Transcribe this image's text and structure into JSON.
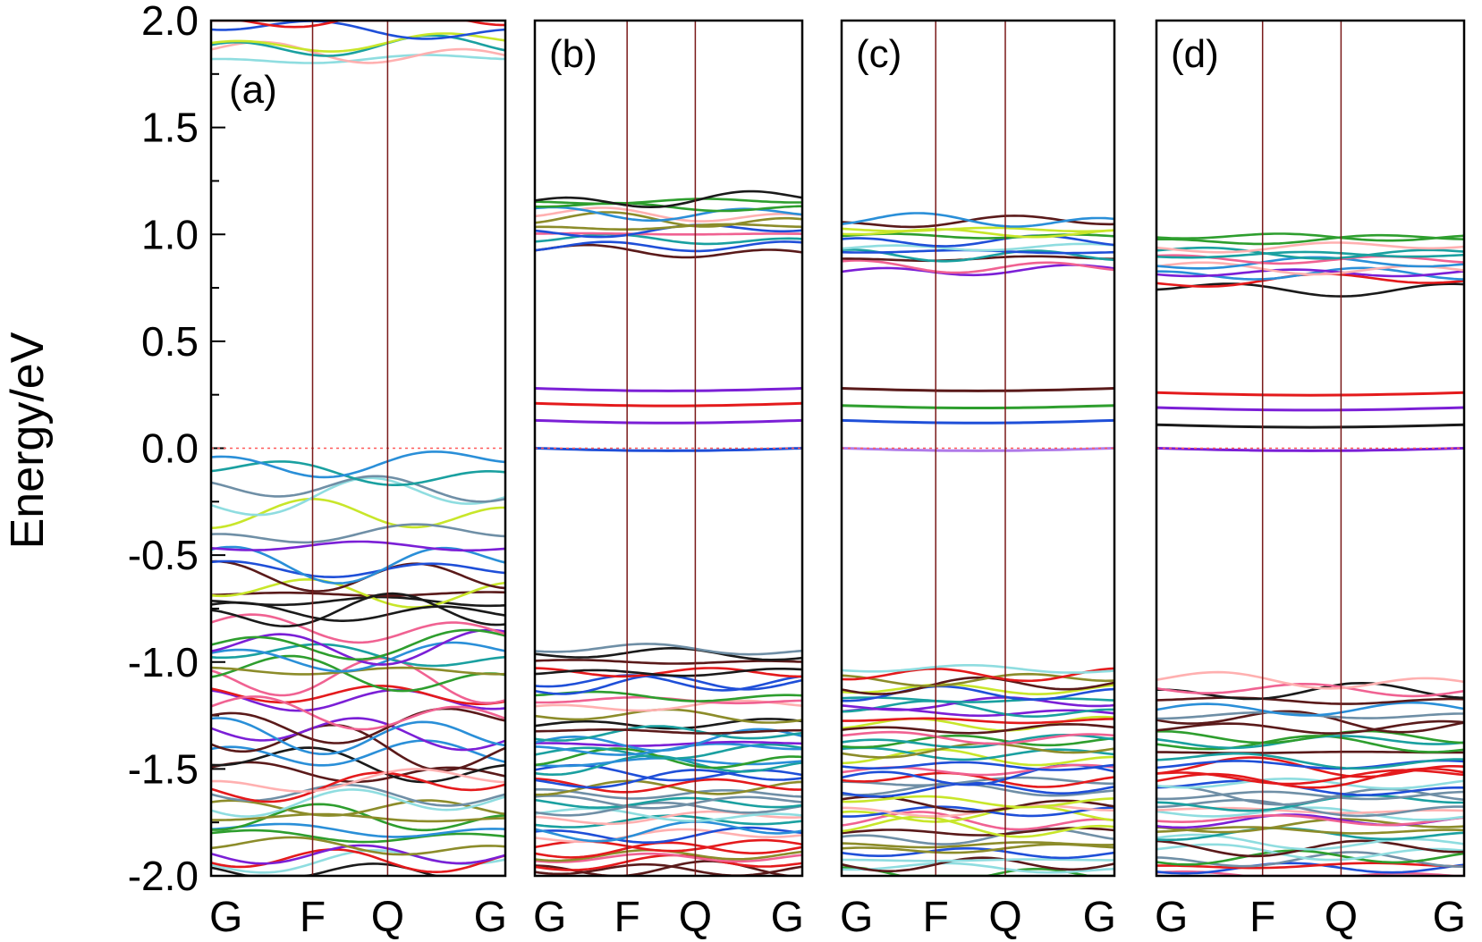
{
  "ylabel": "Energy/eV",
  "y_ticks": [
    "2.0",
    "1.5",
    "1.0",
    "0.5",
    "0.0",
    "-0.5",
    "-1.0",
    "-1.5",
    "-2.0"
  ],
  "colors": {
    "palette": [
      "#e41a1c",
      "#1a1a1a",
      "#1f4fd8",
      "#2e9e2e",
      "#7b1fd6",
      "#1aa0a0",
      "#5a1a1a",
      "#8c8c2a",
      "#f06292",
      "#8fdde0",
      "#2a8fd8",
      "#c8e62a",
      "#6f8fa6",
      "#ffb0b0"
    ],
    "fermi_line": "#ff5a5a",
    "kpath_line": "#7a1a1a"
  },
  "chart_data": [
    {
      "type": "line",
      "label": "(a)",
      "kpoints": [
        "G",
        "F",
        "Q",
        "G"
      ],
      "ylim": [
        -2.0,
        2.0
      ],
      "fermi_level": 0.0,
      "band_groups": [
        {
          "range": [
            1.8,
            2.0
          ],
          "count": 6,
          "amplitude": 0.06
        },
        {
          "range": [
            -0.38,
            0.0
          ],
          "count": 5,
          "amplitude": 0.12
        },
        {
          "range": [
            -0.75,
            -0.4
          ],
          "count": 8,
          "amplitude": 0.12
        },
        {
          "range": [
            -1.2,
            -0.75
          ],
          "count": 12,
          "amplitude": 0.12
        },
        {
          "range": [
            -1.55,
            -1.2
          ],
          "count": 8,
          "amplitude": 0.12
        },
        {
          "range": [
            -2.0,
            -1.55
          ],
          "count": 14,
          "amplitude": 0.08
        }
      ],
      "flat_bands": []
    },
    {
      "type": "line",
      "label": "(b)",
      "kpoints": [
        "G",
        "F",
        "Q",
        "G"
      ],
      "ylim": [
        -2.0,
        2.0
      ],
      "fermi_level": 0.0,
      "band_groups": [
        {
          "range": [
            0.92,
            1.18
          ],
          "count": 12,
          "amplitude": 0.04
        },
        {
          "range": [
            -1.3,
            -0.92
          ],
          "count": 12,
          "amplitude": 0.05
        },
        {
          "range": [
            -2.0,
            -1.3
          ],
          "count": 30,
          "amplitude": 0.05
        }
      ],
      "flat_bands": [
        {
          "energy": 0.28,
          "color": "#7b1fd6"
        },
        {
          "energy": 0.21,
          "color": "#e41a1c"
        },
        {
          "energy": 0.13,
          "color": "#7b1fd6"
        },
        {
          "energy": 0.0,
          "color": "#1f4fd8"
        }
      ]
    },
    {
      "type": "line",
      "label": "(c)",
      "kpoints": [
        "G",
        "F",
        "Q",
        "G"
      ],
      "ylim": [
        -2.0,
        2.0
      ],
      "fermi_level": 0.0,
      "band_groups": [
        {
          "range": [
            0.83,
            1.08
          ],
          "count": 12,
          "amplitude": 0.04
        },
        {
          "range": [
            -1.3,
            -1.02
          ],
          "count": 12,
          "amplitude": 0.05
        },
        {
          "range": [
            -2.0,
            -1.3
          ],
          "count": 30,
          "amplitude": 0.05
        }
      ],
      "flat_bands": [
        {
          "energy": 0.28,
          "color": "#5a1a1a"
        },
        {
          "energy": 0.2,
          "color": "#2e9e2e"
        },
        {
          "energy": 0.13,
          "color": "#1f4fd8"
        },
        {
          "energy": 0.0,
          "color": "#b07ae8"
        }
      ]
    },
    {
      "type": "line",
      "label": "(d)",
      "kpoints": [
        "G",
        "F",
        "Q",
        "G"
      ],
      "ylim": [
        -2.0,
        2.0
      ],
      "fermi_level": 0.0,
      "band_groups": [
        {
          "range": [
            0.75,
            1.0
          ],
          "count": 12,
          "amplitude": 0.04
        },
        {
          "range": [
            -1.45,
            -1.08
          ],
          "count": 12,
          "amplitude": 0.05
        },
        {
          "range": [
            -2.0,
            -1.45
          ],
          "count": 26,
          "amplitude": 0.05
        }
      ],
      "flat_bands": [
        {
          "energy": 0.26,
          "color": "#e41a1c"
        },
        {
          "energy": 0.19,
          "color": "#7b1fd6"
        },
        {
          "energy": 0.11,
          "color": "#1a1a1a"
        },
        {
          "energy": 0.0,
          "color": "#7b1fd6"
        }
      ]
    }
  ]
}
